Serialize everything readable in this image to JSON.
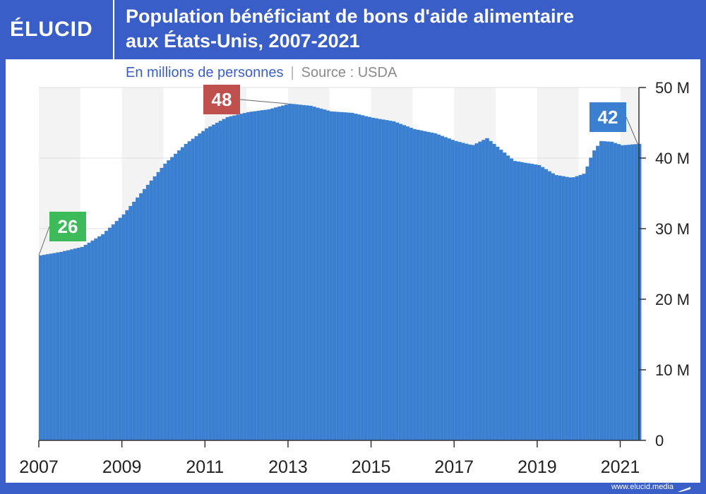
{
  "header": {
    "logo": "ÉLUCID",
    "title_line1": "Population bénéficiant de bons d'aide alimentaire",
    "title_line2": "aux États-Unis, 2007-2021"
  },
  "subtitle": {
    "units": "En millions de personnes",
    "separator": "|",
    "source": "Source : USDA"
  },
  "footer": {
    "url": "www.elucid.media"
  },
  "colors": {
    "bar": "#3a7fd0",
    "band": "#f3f3f3",
    "start_label": "#3dbb5a",
    "peak_label": "#c0504d",
    "end_label": "#3a7fd0",
    "axis_text": "#222222"
  },
  "chart_data": {
    "type": "bar",
    "title": "Population bénéficiant de bons d'aide alimentaire aux États-Unis, 2007-2021",
    "subtitle": "En millions de personnes",
    "source": "Source : USDA",
    "x_start": 2007.0,
    "x_end": 2021.42,
    "xlim": [
      2007,
      2021.45
    ],
    "ylim": [
      0,
      50
    ],
    "x_tick_labels": [
      "2007",
      "2009",
      "2011",
      "2013",
      "2015",
      "2017",
      "2019",
      "2021"
    ],
    "y_tick_labels": [
      "0",
      "10 M",
      "20 M",
      "30 M",
      "40 M",
      "50 M"
    ],
    "y_ticks": [
      0,
      10,
      20,
      30,
      40,
      50
    ],
    "x_ticks": [
      2007,
      2009,
      2011,
      2013,
      2015,
      2017,
      2019,
      2021
    ],
    "key_points": [
      {
        "t": 2007.0,
        "v": 26.2
      },
      {
        "t": 2007.5,
        "v": 26.7
      },
      {
        "t": 2008.0,
        "v": 27.4
      },
      {
        "t": 2008.5,
        "v": 29.2
      },
      {
        "t": 2009.0,
        "v": 32.0
      },
      {
        "t": 2009.5,
        "v": 35.6
      },
      {
        "t": 2010.0,
        "v": 39.2
      },
      {
        "t": 2010.5,
        "v": 42.0
      },
      {
        "t": 2011.0,
        "v": 44.2
      },
      {
        "t": 2011.5,
        "v": 45.8
      },
      {
        "t": 2012.0,
        "v": 46.5
      },
      {
        "t": 2012.5,
        "v": 46.9
      },
      {
        "t": 2013.0,
        "v": 47.7
      },
      {
        "t": 2013.5,
        "v": 47.4
      },
      {
        "t": 2014.0,
        "v": 46.6
      },
      {
        "t": 2014.5,
        "v": 46.4
      },
      {
        "t": 2015.0,
        "v": 45.7
      },
      {
        "t": 2015.5,
        "v": 45.2
      },
      {
        "t": 2016.0,
        "v": 44.1
      },
      {
        "t": 2016.5,
        "v": 43.5
      },
      {
        "t": 2017.0,
        "v": 42.4
      },
      {
        "t": 2017.4,
        "v": 41.8
      },
      {
        "t": 2017.75,
        "v": 42.8
      },
      {
        "t": 2018.0,
        "v": 41.6
      },
      {
        "t": 2018.4,
        "v": 39.6
      },
      {
        "t": 2019.0,
        "v": 39.0
      },
      {
        "t": 2019.4,
        "v": 37.6
      },
      {
        "t": 2019.8,
        "v": 37.2
      },
      {
        "t": 2020.1,
        "v": 37.8
      },
      {
        "t": 2020.3,
        "v": 40.8
      },
      {
        "t": 2020.5,
        "v": 42.4
      },
      {
        "t": 2020.75,
        "v": 42.3
      },
      {
        "t": 2021.0,
        "v": 41.8
      },
      {
        "t": 2021.42,
        "v": 42.0
      }
    ],
    "annotations": [
      {
        "label": "26",
        "value": 26.2,
        "t": 2007.0,
        "role": "start"
      },
      {
        "label": "48",
        "value": 47.7,
        "t": 2013.0,
        "role": "peak"
      },
      {
        "label": "42",
        "value": 42.0,
        "t": 2021.42,
        "role": "end"
      }
    ]
  }
}
